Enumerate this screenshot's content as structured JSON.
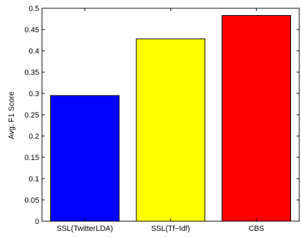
{
  "chart_data": {
    "type": "bar",
    "categories": [
      "SSL(TwitterLDA)",
      "SSL(Tf−Idf)",
      "CBS"
    ],
    "values": [
      0.295,
      0.428,
      0.483
    ],
    "colors": [
      "#0000ff",
      "#ffff00",
      "#ff0000"
    ],
    "ylabel": "Avg. F1 Score",
    "xlabel": "",
    "title": "",
    "ylim": [
      0,
      0.5
    ],
    "yticks": [
      0,
      0.05,
      0.1,
      0.15,
      0.2,
      0.25,
      0.3,
      0.35,
      0.4,
      0.45,
      0.5
    ],
    "ytick_labels": [
      "0",
      "0.05",
      "0.1",
      "0.15",
      "0.2",
      "0.25",
      "0.3",
      "0.35",
      "0.4",
      "0.45",
      "0.5"
    ],
    "grid": false,
    "legend": "none"
  }
}
